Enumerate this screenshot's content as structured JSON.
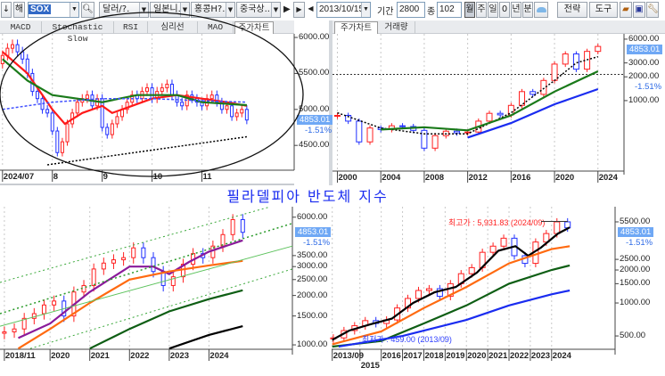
{
  "toolbar": {
    "down_btn": "↓",
    "hae_btn": "해",
    "symbol": "SOX",
    "dropdowns": [
      "달러/?.",
      "일본니..",
      "홍콩H?.",
      "중국상.."
    ],
    "date": "2013/10/15",
    "period_label": "기간",
    "period_value": "2800",
    "count_label": "종",
    "count_value": "102",
    "interval_buttons": [
      "월",
      "주",
      "일",
      "0",
      "년",
      "분"
    ],
    "selected_interval": "월",
    "strategy_btn": "전략",
    "tools_btn": "도구"
  },
  "left_tabs": [
    "MACD",
    "Stochastic Slow",
    "RSI",
    "심리선",
    "MAO",
    "주가차트"
  ],
  "right_tabs": [
    "주가차트",
    "거래량"
  ],
  "title": "필라델피아 반도체 지수",
  "last_price": "4853.01",
  "change_pct": "-1.51%",
  "colors": {
    "up": "#ff2020",
    "down": "#2030ff",
    "price_tag": "#6fa8f5",
    "title": "#1a2cf0"
  },
  "annotations": {
    "high": "최고가 : 5,931.83 (2024/09)",
    "low": "최저가 : 459.00 (2013/09)"
  },
  "chart_data": [
    {
      "id": "daily",
      "type": "candlestick",
      "scale": "linear",
      "x_unit": "month of 2024",
      "x_range": [
        6.95,
        12.85
      ],
      "y_range": [
        4230,
        6050
      ],
      "y_ticks": [
        {
          "v": 6000,
          "label": "6000.00"
        },
        {
          "v": 5500,
          "label": "5500.00"
        },
        {
          "v": 5000,
          "label": "5000.00"
        },
        {
          "v": 4500,
          "label": "4500.00"
        }
      ],
      "x_ticks": [
        {
          "v": 7.0,
          "label": "2024/07"
        },
        {
          "v": 8,
          "label": "8"
        },
        {
          "v": 9,
          "label": "9"
        },
        {
          "v": 10,
          "label": "10"
        },
        {
          "v": 11,
          "label": "11"
        }
      ],
      "candles": {
        "x_start": 7.0,
        "x_step": 0.1,
        "close": [
          5750,
          5850,
          5900,
          5800,
          5700,
          5500,
          5250,
          5150,
          5000,
          4950,
          4700,
          4400,
          4550,
          4800,
          4950,
          5100,
          5150,
          5200,
          5050,
          5150,
          4750,
          4650,
          4800,
          4900,
          5000,
          5100,
          5200,
          5150,
          5250,
          5300,
          5150,
          5250,
          5300,
          5350,
          5200,
          5100,
          5050,
          5200,
          5150,
          5100,
          5050,
          5150,
          5200,
          5100,
          5000,
          5050,
          4900,
          4950,
          5000,
          4853
        ]
      },
      "series": [
        {
          "name": "MA-short",
          "color": "#ff1a1a",
          "points": [
            [
              7.0,
              5800
            ],
            [
              7.5,
              5500
            ],
            [
              8.0,
              5000
            ],
            [
              8.25,
              4800
            ],
            [
              8.6,
              4950
            ],
            [
              9.0,
              5050
            ],
            [
              9.2,
              4950
            ],
            [
              9.6,
              5050
            ],
            [
              10.0,
              5150
            ],
            [
              10.5,
              5200
            ],
            [
              11.0,
              5150
            ],
            [
              11.5,
              5100
            ],
            [
              11.9,
              5050
            ]
          ]
        },
        {
          "name": "MA-mid",
          "color": "#1a7a1a",
          "points": [
            [
              7.0,
              5700
            ],
            [
              7.5,
              5400
            ],
            [
              8.0,
              5200
            ],
            [
              8.5,
              5150
            ],
            [
              9.0,
              5100
            ],
            [
              9.7,
              5200
            ],
            [
              10.5,
              5200
            ],
            [
              11.0,
              5100
            ],
            [
              11.9,
              5060
            ]
          ]
        },
        {
          "name": "MA-long",
          "color": "#4050ff",
          "dash": "3,2",
          "points": [
            [
              7.0,
              5000
            ],
            [
              8.0,
              5100
            ],
            [
              9.0,
              5150
            ],
            [
              10.0,
              5150
            ],
            [
              11.0,
              5120
            ],
            [
              11.9,
              5100
            ]
          ]
        },
        {
          "name": "trendline",
          "color": "#000",
          "dash": "2,2",
          "points": [
            [
              7.9,
              4230
            ],
            [
              11.9,
              4620
            ]
          ]
        }
      ]
    },
    {
      "id": "long-term",
      "type": "candlestick",
      "scale": "log",
      "x_range": [
        1999.55,
        2026.4
      ],
      "y_range": [
        135,
        7000
      ],
      "y_ticks": [
        {
          "v": 6000,
          "label": "6000.00"
        },
        {
          "v": 3000,
          "label": "3000.00"
        },
        {
          "v": 2000,
          "label": "2000.00"
        },
        {
          "v": 1000,
          "label": "1000.00"
        }
      ],
      "x_ticks": [
        {
          "v": 2000,
          "label": "2000"
        },
        {
          "v": 2004,
          "label": "2004"
        },
        {
          "v": 2008,
          "label": "2008"
        },
        {
          "v": 2012,
          "label": "2012"
        },
        {
          "v": 2016,
          "label": "2016"
        },
        {
          "v": 2020,
          "label": "2020"
        },
        {
          "v": 2024,
          "label": "2024"
        }
      ],
      "candles": {
        "x_start": 2000,
        "x_step": 1,
        "close": [
          650,
          550,
          300,
          450,
          430,
          480,
          470,
          420,
          250,
          360,
          410,
          390,
          400,
          550,
          690,
          660,
          870,
          1300,
          1200,
          1800,
          2900,
          3900,
          2500,
          4200,
          4853
        ]
      },
      "hline": 2150,
      "series": [
        {
          "name": "MA-short",
          "color": "#000",
          "dash": "2,2",
          "points": [
            [
              2000,
              700
            ],
            [
              2004,
              450
            ],
            [
              2008,
              380
            ],
            [
              2012,
              380
            ],
            [
              2016,
              700
            ],
            [
              2020,
              1800
            ],
            [
              2022,
              3000
            ],
            [
              2024,
              3600
            ]
          ]
        },
        {
          "name": "MA-mid",
          "color": "#1a7a1a",
          "points": [
            [
              2004,
              430
            ],
            [
              2008,
              460
            ],
            [
              2012,
              420
            ],
            [
              2016,
              650
            ],
            [
              2020,
              1300
            ],
            [
              2024,
              2350
            ]
          ]
        },
        {
          "name": "MA-long",
          "color": "#1a2cf0",
          "points": [
            [
              2012,
              340
            ],
            [
              2016,
              520
            ],
            [
              2020,
              900
            ],
            [
              2024,
              1400
            ]
          ]
        }
      ]
    },
    {
      "id": "weekly",
      "type": "candlestick",
      "scale": "log",
      "x_range": [
        2018.74,
        2026.1
      ],
      "y_range": [
        940,
        6950
      ],
      "y_ticks": [
        {
          "v": 6000,
          "label": "6000.00"
        },
        {
          "v": 3500,
          "label": "3500.00"
        },
        {
          "v": 3000,
          "label": "3000.00"
        },
        {
          "v": 2500,
          "label": "2500.00"
        },
        {
          "v": 2000,
          "label": "2000.00"
        },
        {
          "v": 1500,
          "label": "1500.00"
        },
        {
          "v": 1000,
          "label": "1000.00"
        }
      ],
      "x_ticks": [
        {
          "v": 2018.85,
          "label": "2018/11"
        },
        {
          "v": 2020,
          "label": "2020"
        },
        {
          "v": 2021,
          "label": "2021"
        },
        {
          "v": 2022,
          "label": "2022"
        },
        {
          "v": 2023,
          "label": "2023"
        },
        {
          "v": 2024,
          "label": "2024"
        }
      ],
      "candles": {
        "x_start": 2018.85,
        "x_step": 0.25,
        "close": [
          1200,
          1250,
          1450,
          1550,
          1750,
          1850,
          1500,
          2100,
          2300,
          2900,
          3150,
          3300,
          3400,
          3900,
          3400,
          2800,
          2300,
          2600,
          3100,
          3600,
          3400,
          4000,
          4700,
          5800,
          4853
        ]
      },
      "series": [
        {
          "name": "MA-purple",
          "color": "#8a1a9a",
          "points": [
            [
              2019.2,
              1100
            ],
            [
              2020,
              1350
            ],
            [
              2021,
              2100
            ],
            [
              2022,
              3000
            ],
            [
              2022.6,
              3000
            ],
            [
              2023,
              2700
            ],
            [
              2023.5,
              3200
            ],
            [
              2024,
              3700
            ],
            [
              2024.85,
              4330
            ]
          ]
        },
        {
          "name": "MA-orange",
          "color": "#ff6a10",
          "points": [
            [
              2019.2,
              950
            ],
            [
              2020,
              1250
            ],
            [
              2021,
              1800
            ],
            [
              2022,
              2500
            ],
            [
              2023,
              2800
            ],
            [
              2024,
              3050
            ],
            [
              2024.85,
              3250
            ]
          ]
        },
        {
          "name": "MA-green",
          "color": "#0e5e14",
          "points": [
            [
              2021,
              950
            ],
            [
              2022,
              1250
            ],
            [
              2023,
              1600
            ],
            [
              2024,
              1900
            ],
            [
              2024.85,
              2150
            ]
          ]
        },
        {
          "name": "MA-black",
          "color": "#000",
          "points": [
            [
              2023,
              950
            ],
            [
              2024,
              1150
            ],
            [
              2024.85,
              1300
            ]
          ]
        },
        {
          "name": "support-line",
          "color": "#5ec35e",
          "thin": true,
          "points": [
            [
              2018.74,
              1300
            ],
            [
              2026.1,
              4000
            ]
          ]
        },
        {
          "name": "channel-upper",
          "color": "#3aa83a",
          "dash": "2,3",
          "thin": true,
          "points": [
            [
              2018.74,
              2400
            ],
            [
              2025.5,
              6900
            ]
          ]
        },
        {
          "name": "channel-mid",
          "color": "#2a9a2a",
          "dash": "2,3",
          "points": [
            [
              2018.74,
              1550
            ],
            [
              2026.1,
              5500
            ]
          ]
        },
        {
          "name": "channel-lower",
          "color": "#3aa83a",
          "dash": "2,3",
          "thin": true,
          "points": [
            [
              2019.5,
              950
            ],
            [
              2026.1,
              2900
            ]
          ]
        }
      ]
    },
    {
      "id": "monthly",
      "type": "candlestick",
      "scale": "log",
      "x_range": [
        2013.67,
        2026.98
      ],
      "y_range": [
        378,
        7560
      ],
      "y_ticks": [
        {
          "v": 5500,
          "label": "5500.00"
        },
        {
          "v": 2500,
          "label": "2500.00"
        },
        {
          "v": 2000,
          "label": "2000.00"
        },
        {
          "v": 1500,
          "label": "1500.00"
        },
        {
          "v": 1000,
          "label": "1000.00"
        },
        {
          "v": 500,
          "label": "500.00"
        }
      ],
      "x_ticks": [
        {
          "v": 2013.7,
          "label": "2013/09"
        },
        {
          "v": 2015,
          "label": "2015"
        },
        {
          "v": 2016,
          "label": "2016"
        },
        {
          "v": 2017,
          "label": "2017"
        },
        {
          "v": 2018,
          "label": "2018"
        },
        {
          "v": 2019,
          "label": "2019"
        },
        {
          "v": 2020,
          "label": "2020"
        },
        {
          "v": 2021,
          "label": "2021"
        },
        {
          "v": 2022,
          "label": "2022"
        },
        {
          "v": 2023,
          "label": "2023"
        },
        {
          "v": 2024,
          "label": "2024"
        }
      ],
      "candles": {
        "x_start": 2013.75,
        "x_step": 0.5,
        "close": [
          480,
          560,
          620,
          690,
          650,
          700,
          900,
          1100,
          1300,
          1350,
          1150,
          1500,
          1850,
          2100,
          2900,
          3300,
          3900,
          2700,
          2300,
          3600,
          4300,
          5500,
          4853
        ]
      },
      "high_value": 5931.83,
      "low_value": 459.0,
      "series": [
        {
          "name": "MA-black",
          "color": "#000",
          "points": [
            [
              2013.7,
              460
            ],
            [
              2014.5,
              560
            ],
            [
              2015.5,
              640
            ],
            [
              2016.5,
              720
            ],
            [
              2017.5,
              1000
            ],
            [
              2018.5,
              1250
            ],
            [
              2019.5,
              1400
            ],
            [
              2020.5,
              1900
            ],
            [
              2021.5,
              3000
            ],
            [
              2022.3,
              3300
            ],
            [
              2022.9,
              2700
            ],
            [
              2023.5,
              3200
            ],
            [
              2024.3,
              4300
            ],
            [
              2024.85,
              4900
            ]
          ]
        },
        {
          "name": "MA-orange",
          "color": "#ff6a10",
          "points": [
            [
              2013.7,
              420
            ],
            [
              2016,
              550
            ],
            [
              2018,
              900
            ],
            [
              2020,
              1400
            ],
            [
              2022,
              2300
            ],
            [
              2024,
              3100
            ],
            [
              2024.85,
              3300
            ]
          ]
        },
        {
          "name": "MA-green",
          "color": "#0e5e14",
          "points": [
            [
              2013.7,
              400
            ],
            [
              2016,
              450
            ],
            [
              2018,
              650
            ],
            [
              2020,
              950
            ],
            [
              2022,
              1500
            ],
            [
              2024,
              2000
            ],
            [
              2024.85,
              2200
            ]
          ]
        },
        {
          "name": "MA-blue",
          "color": "#1a2cf0",
          "points": [
            [
              2014,
              400
            ],
            [
              2017,
              500
            ],
            [
              2020,
              700
            ],
            [
              2022,
              950
            ],
            [
              2024,
              1200
            ],
            [
              2024.85,
              1300
            ]
          ]
        }
      ]
    }
  ]
}
